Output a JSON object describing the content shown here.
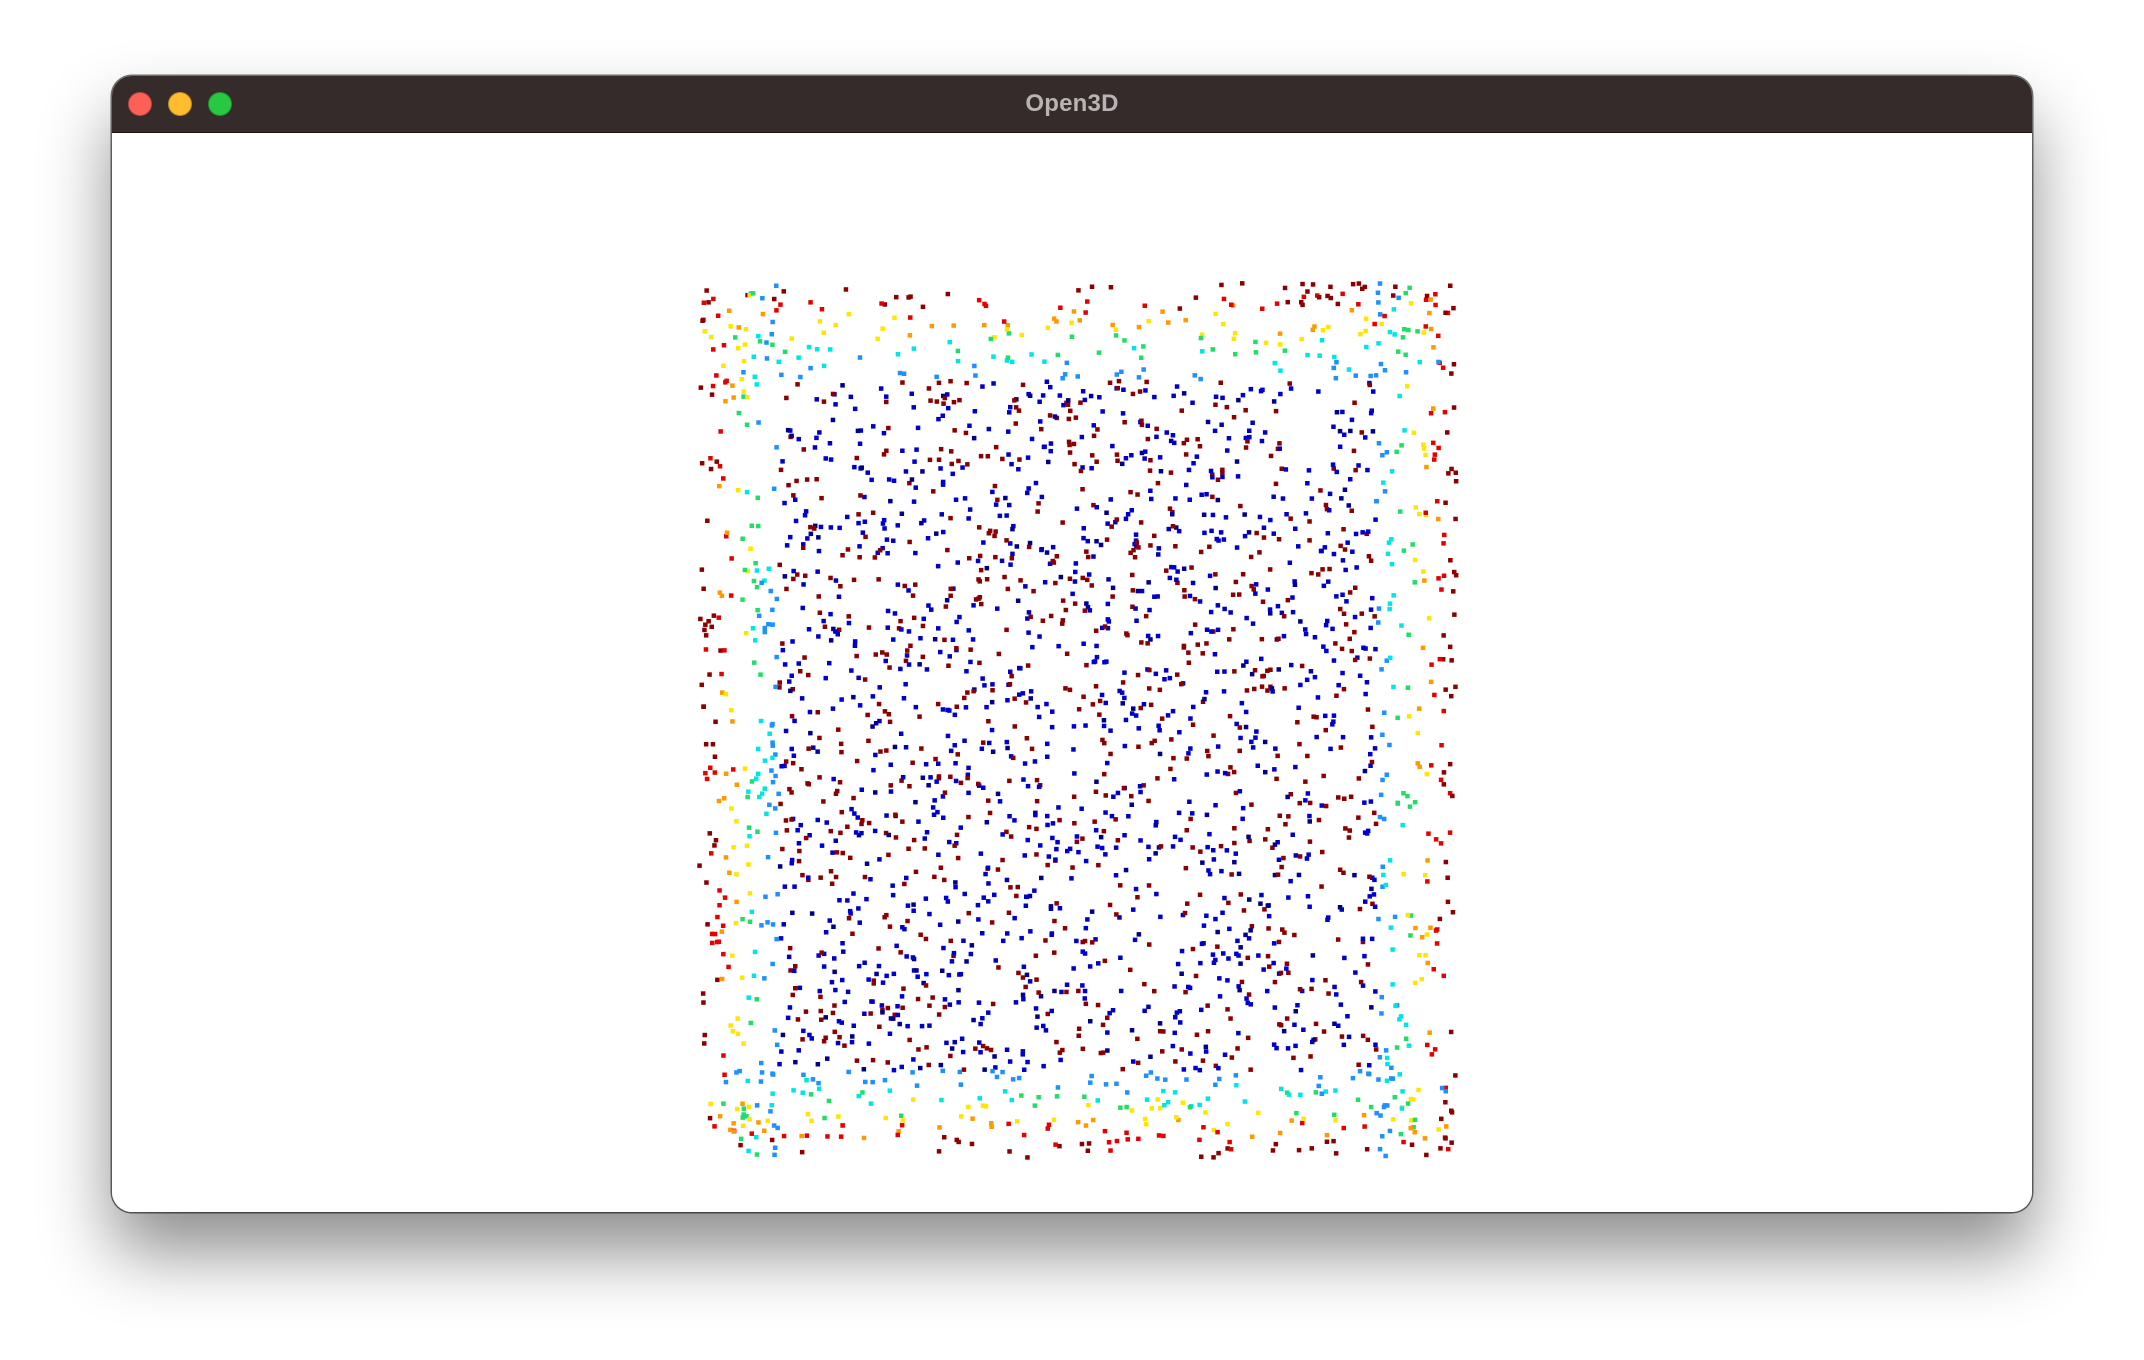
{
  "window": {
    "title": "Open3D",
    "controls": {
      "close_color": "#fe5f57",
      "minimize_color": "#febc2e",
      "maximize_color": "#28c840"
    }
  },
  "viewport": {
    "background": "#ffffff",
    "colormap": [
      "#00008b",
      "#0000cd",
      "#1e90ff",
      "#00e5e5",
      "#22dd66",
      "#ffe600",
      "#ff9900",
      "#e60000",
      "#8b0000"
    ]
  }
}
